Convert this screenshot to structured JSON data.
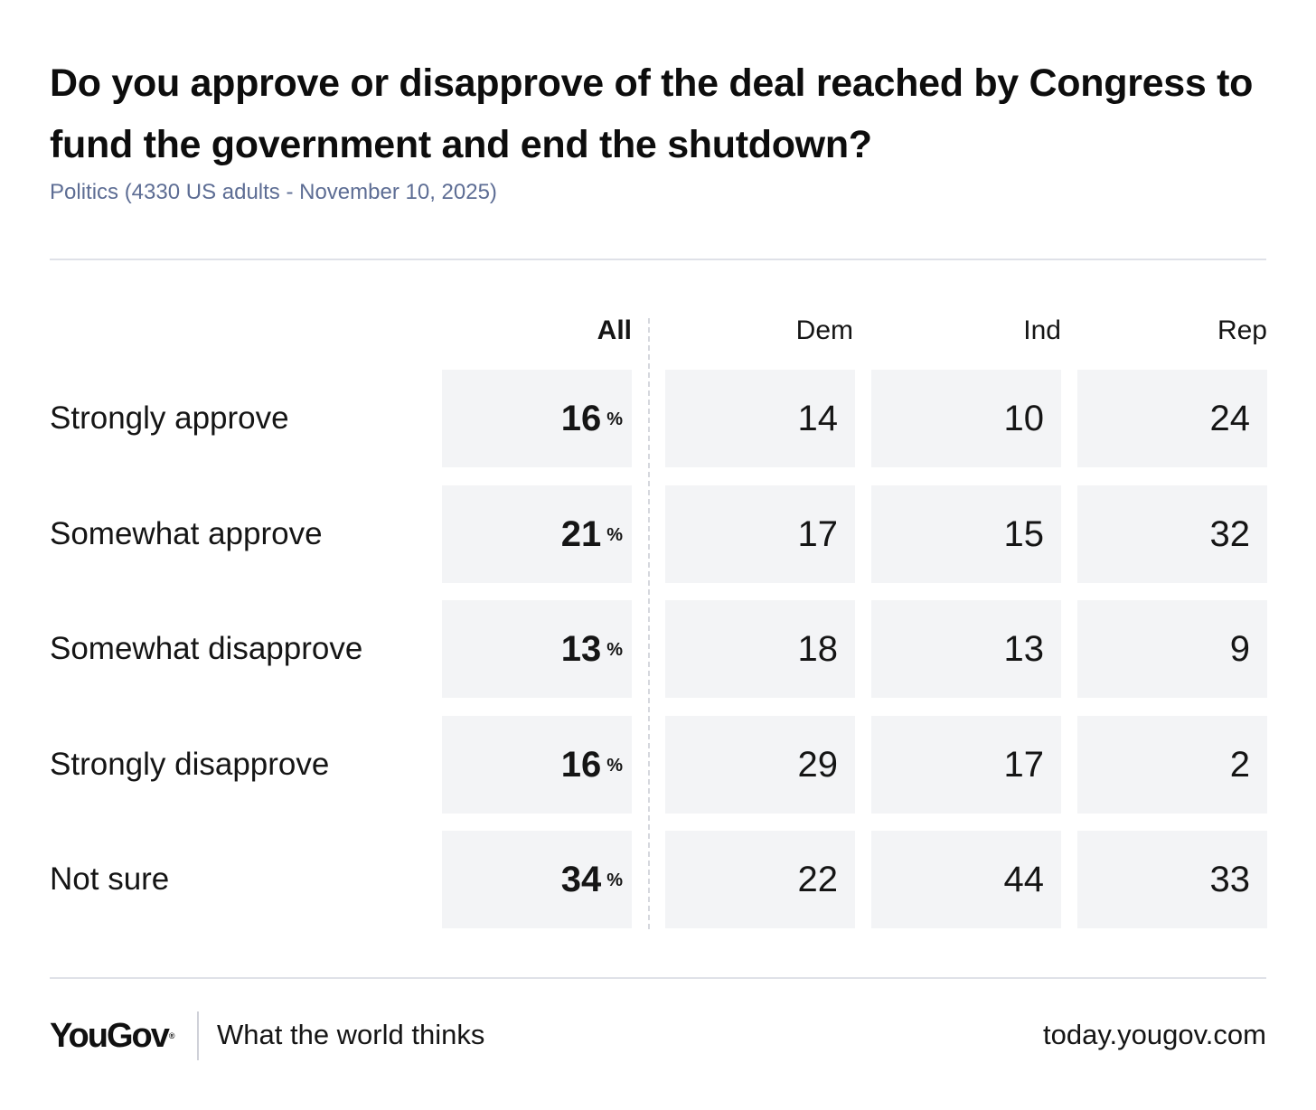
{
  "title": "Do you approve or disapprove of the deal reached by Congress to fund the government and end the shutdown?",
  "subtitle": "Politics (4330 US adults - November 10, 2025)",
  "chart_data": {
    "type": "table",
    "title": "Do you approve or disapprove of the deal reached by Congress to fund the government and end the shutdown?",
    "subtitle": "Politics (4330 US adults - November 10, 2025)",
    "columns": [
      "All",
      "Dem",
      "Ind",
      "Rep"
    ],
    "rows": [
      {
        "label": "Strongly approve",
        "all": "16",
        "dem": "14",
        "ind": "10",
        "rep": "24"
      },
      {
        "label": "Somewhat approve",
        "all": "21",
        "dem": "17",
        "ind": "15",
        "rep": "32"
      },
      {
        "label": "Somewhat disapprove",
        "all": "13",
        "dem": "18",
        "ind": "13",
        "rep": "9"
      },
      {
        "label": "Strongly disapprove",
        "all": "16",
        "dem": "29",
        "ind": "17",
        "rep": "2"
      },
      {
        "label": "Not sure",
        "all": "34",
        "dem": "22",
        "ind": "44",
        "rep": "33"
      }
    ],
    "unit": "%"
  },
  "footer": {
    "logo": "YouGov",
    "logo_mark": "®",
    "tagline": "What the world thinks",
    "site": "today.yougov.com"
  },
  "colors": {
    "cell_background": "#f3f4f6",
    "subtitle": "#5d6d94",
    "rule": "#dfe1e8"
  }
}
